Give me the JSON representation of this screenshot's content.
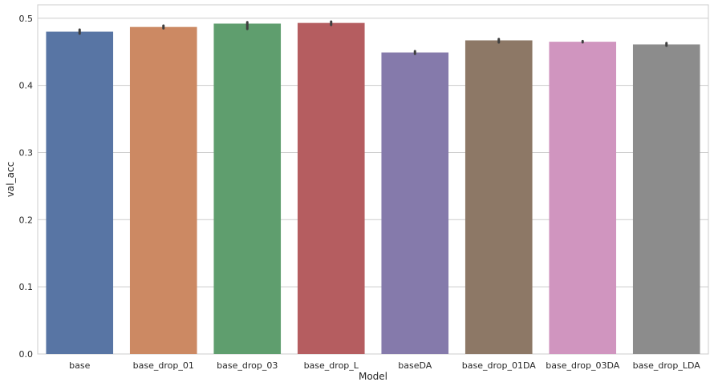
{
  "chart_data": {
    "type": "bar",
    "title": "",
    "xlabel": "Model",
    "ylabel": "val_acc",
    "ylim": [
      0,
      0.52
    ],
    "yticks": [
      0.0,
      0.1,
      0.2,
      0.3,
      0.4,
      0.5
    ],
    "ytick_labels": [
      "0.0",
      "0.1",
      "0.2",
      "0.3",
      "0.4",
      "0.5"
    ],
    "grid": "horizontal",
    "legend": "none",
    "categories": [
      "base",
      "base_drop_01",
      "base_drop_03",
      "base_drop_L",
      "baseDA",
      "base_drop_01DA",
      "base_drop_03DA",
      "base_drop_LDA"
    ],
    "values": [
      0.48,
      0.487,
      0.492,
      0.493,
      0.449,
      0.467,
      0.465,
      0.461
    ],
    "error_low": [
      0.477,
      0.485,
      0.484,
      0.49,
      0.447,
      0.464,
      0.465,
      0.459
    ],
    "error_high": [
      0.483,
      0.489,
      0.494,
      0.495,
      0.451,
      0.469,
      0.465,
      0.463
    ],
    "colors": [
      "#5875a4",
      "#cc8963",
      "#5f9e6e",
      "#b55d60",
      "#857aab",
      "#8d7866",
      "#d095bf",
      "#8c8c8c"
    ],
    "error_color": "#3f3f3f",
    "axis_color": "#cccccc",
    "grid_color": "#cccccc"
  }
}
